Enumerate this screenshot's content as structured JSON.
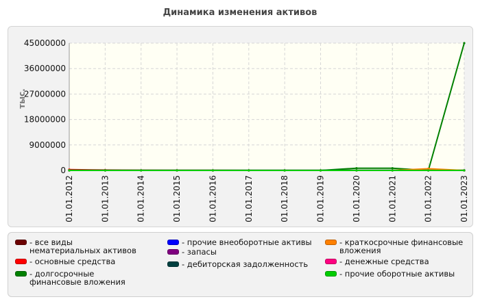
{
  "chart_data": {
    "type": "line",
    "title": "Динамика изменения активов",
    "ylabel": "тыс.",
    "xlabel": "",
    "ylim": [
      0,
      45000000
    ],
    "yticks": [
      0,
      9000000,
      18000000,
      27000000,
      36000000,
      45000000
    ],
    "categories": [
      "01.01.2012",
      "01.01.2013",
      "01.01.2014",
      "01.01.2015",
      "01.01.2016",
      "01.01.2017",
      "01.01.2018",
      "01.01.2019",
      "01.01.2020",
      "01.01.2021",
      "01.01.2022",
      "01.01.2023"
    ],
    "grid": true,
    "legend_position": "bottom",
    "series": [
      {
        "name": "- все виды нематериальных активов",
        "color": "#6b0000",
        "values": [
          0,
          0,
          0,
          0,
          0,
          0,
          0,
          0,
          0,
          0,
          0,
          0
        ]
      },
      {
        "name": "- основные средства",
        "color": "#ff0000",
        "values": [
          300000,
          150000,
          80000,
          60000,
          50000,
          40000,
          30000,
          30000,
          30000,
          30000,
          30000,
          30000
        ]
      },
      {
        "name": "- долгосрочные финансовые вложения",
        "color": "#008000",
        "values": [
          0,
          0,
          0,
          0,
          0,
          0,
          0,
          0,
          800000,
          800000,
          0,
          45000000
        ]
      },
      {
        "name": "- прочие внеоборотные активы",
        "color": "#0000ff",
        "values": [
          0,
          0,
          0,
          0,
          0,
          0,
          0,
          0,
          0,
          0,
          0,
          0
        ]
      },
      {
        "name": "- запасы",
        "color": "#800080",
        "values": [
          0,
          0,
          0,
          0,
          0,
          0,
          0,
          0,
          0,
          0,
          0,
          0
        ]
      },
      {
        "name": "- дебиторская задолженность",
        "color": "#004040",
        "values": [
          50000,
          50000,
          50000,
          50000,
          50000,
          50000,
          50000,
          50000,
          50000,
          50000,
          50000,
          50000
        ]
      },
      {
        "name": "- краткосрочные финансовые вложения",
        "color": "#ff8000",
        "values": [
          0,
          0,
          0,
          0,
          0,
          0,
          0,
          0,
          0,
          0,
          600000,
          0
        ]
      },
      {
        "name": "- денежные средства",
        "color": "#ff0080",
        "values": [
          0,
          0,
          0,
          0,
          0,
          0,
          0,
          0,
          0,
          0,
          0,
          0
        ]
      },
      {
        "name": "- прочие оборотные активы",
        "color": "#00cc00",
        "values": [
          0,
          0,
          0,
          0,
          0,
          0,
          0,
          0,
          0,
          0,
          0,
          0
        ]
      }
    ]
  }
}
